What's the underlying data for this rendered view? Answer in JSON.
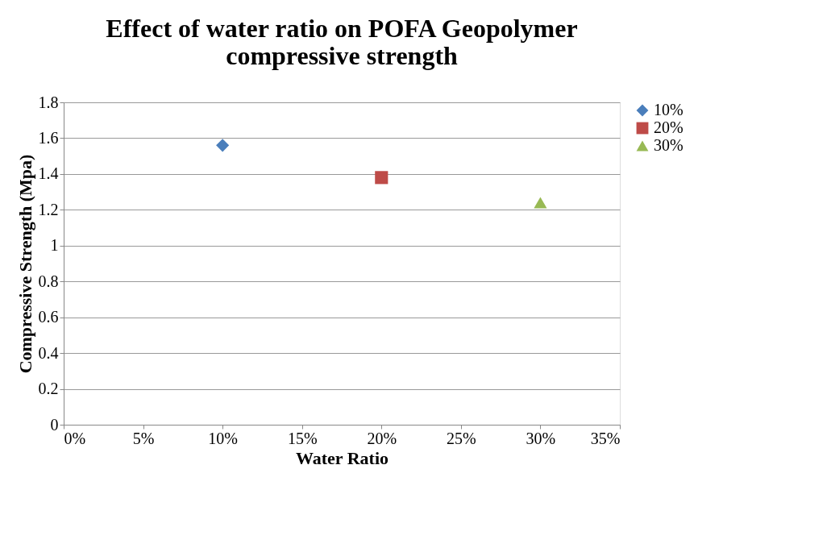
{
  "chart_data": {
    "type": "scatter",
    "title": "Effect of water ratio on POFA Geopolymer\ncompressive strength",
    "xlabel": "Water  Ratio",
    "ylabel": "Compressive Strength (Mpa)",
    "xlim": [
      0,
      35
    ],
    "xticks": [
      {
        "value": 0,
        "label": "0%"
      },
      {
        "value": 5,
        "label": "5%"
      },
      {
        "value": 10,
        "label": "10%"
      },
      {
        "value": 15,
        "label": "15%"
      },
      {
        "value": 20,
        "label": "20%"
      },
      {
        "value": 25,
        "label": "25%"
      },
      {
        "value": 30,
        "label": "30%"
      },
      {
        "value": 35,
        "label": "35%"
      }
    ],
    "ylim": [
      0,
      1.8
    ],
    "yticks": [
      0,
      0.2,
      0.4,
      0.6,
      0.8,
      1,
      1.2,
      1.4,
      1.6,
      1.8
    ],
    "grid": "y",
    "legend": "right",
    "series": [
      {
        "name": "10%",
        "color": "#4a7ebb",
        "marker": "diamond",
        "x": [
          10
        ],
        "values": [
          1.56
        ]
      },
      {
        "name": "20%",
        "color": "#be4b48",
        "marker": "square",
        "x": [
          20
        ],
        "values": [
          1.38
        ]
      },
      {
        "name": "30%",
        "color": "#98b954",
        "marker": "triangle",
        "x": [
          30
        ],
        "values": [
          1.24
        ]
      }
    ]
  }
}
